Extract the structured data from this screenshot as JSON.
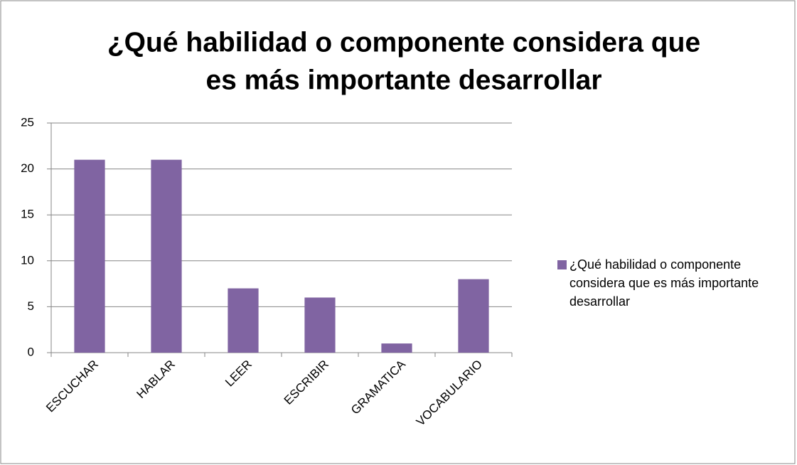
{
  "chart_data": {
    "type": "bar",
    "title": [
      "¿Qué habilidad o componente considera que",
      "es más importante desarrollar"
    ],
    "categories": [
      "ESCUCHAR",
      "HABLAR",
      "LEER",
      "ESCRIBIR",
      "GRAMATICA",
      "VOCABULARIO"
    ],
    "series": [
      {
        "name": "¿Qué habilidad o componente considera que es más importante desarrollar",
        "color": "#8064a2",
        "values": [
          21,
          21,
          7,
          6,
          1,
          8
        ]
      }
    ],
    "ylim": [
      0,
      25
    ],
    "yticks": [
      0,
      5,
      10,
      15,
      20,
      25
    ],
    "grid": true,
    "legend": "right"
  }
}
